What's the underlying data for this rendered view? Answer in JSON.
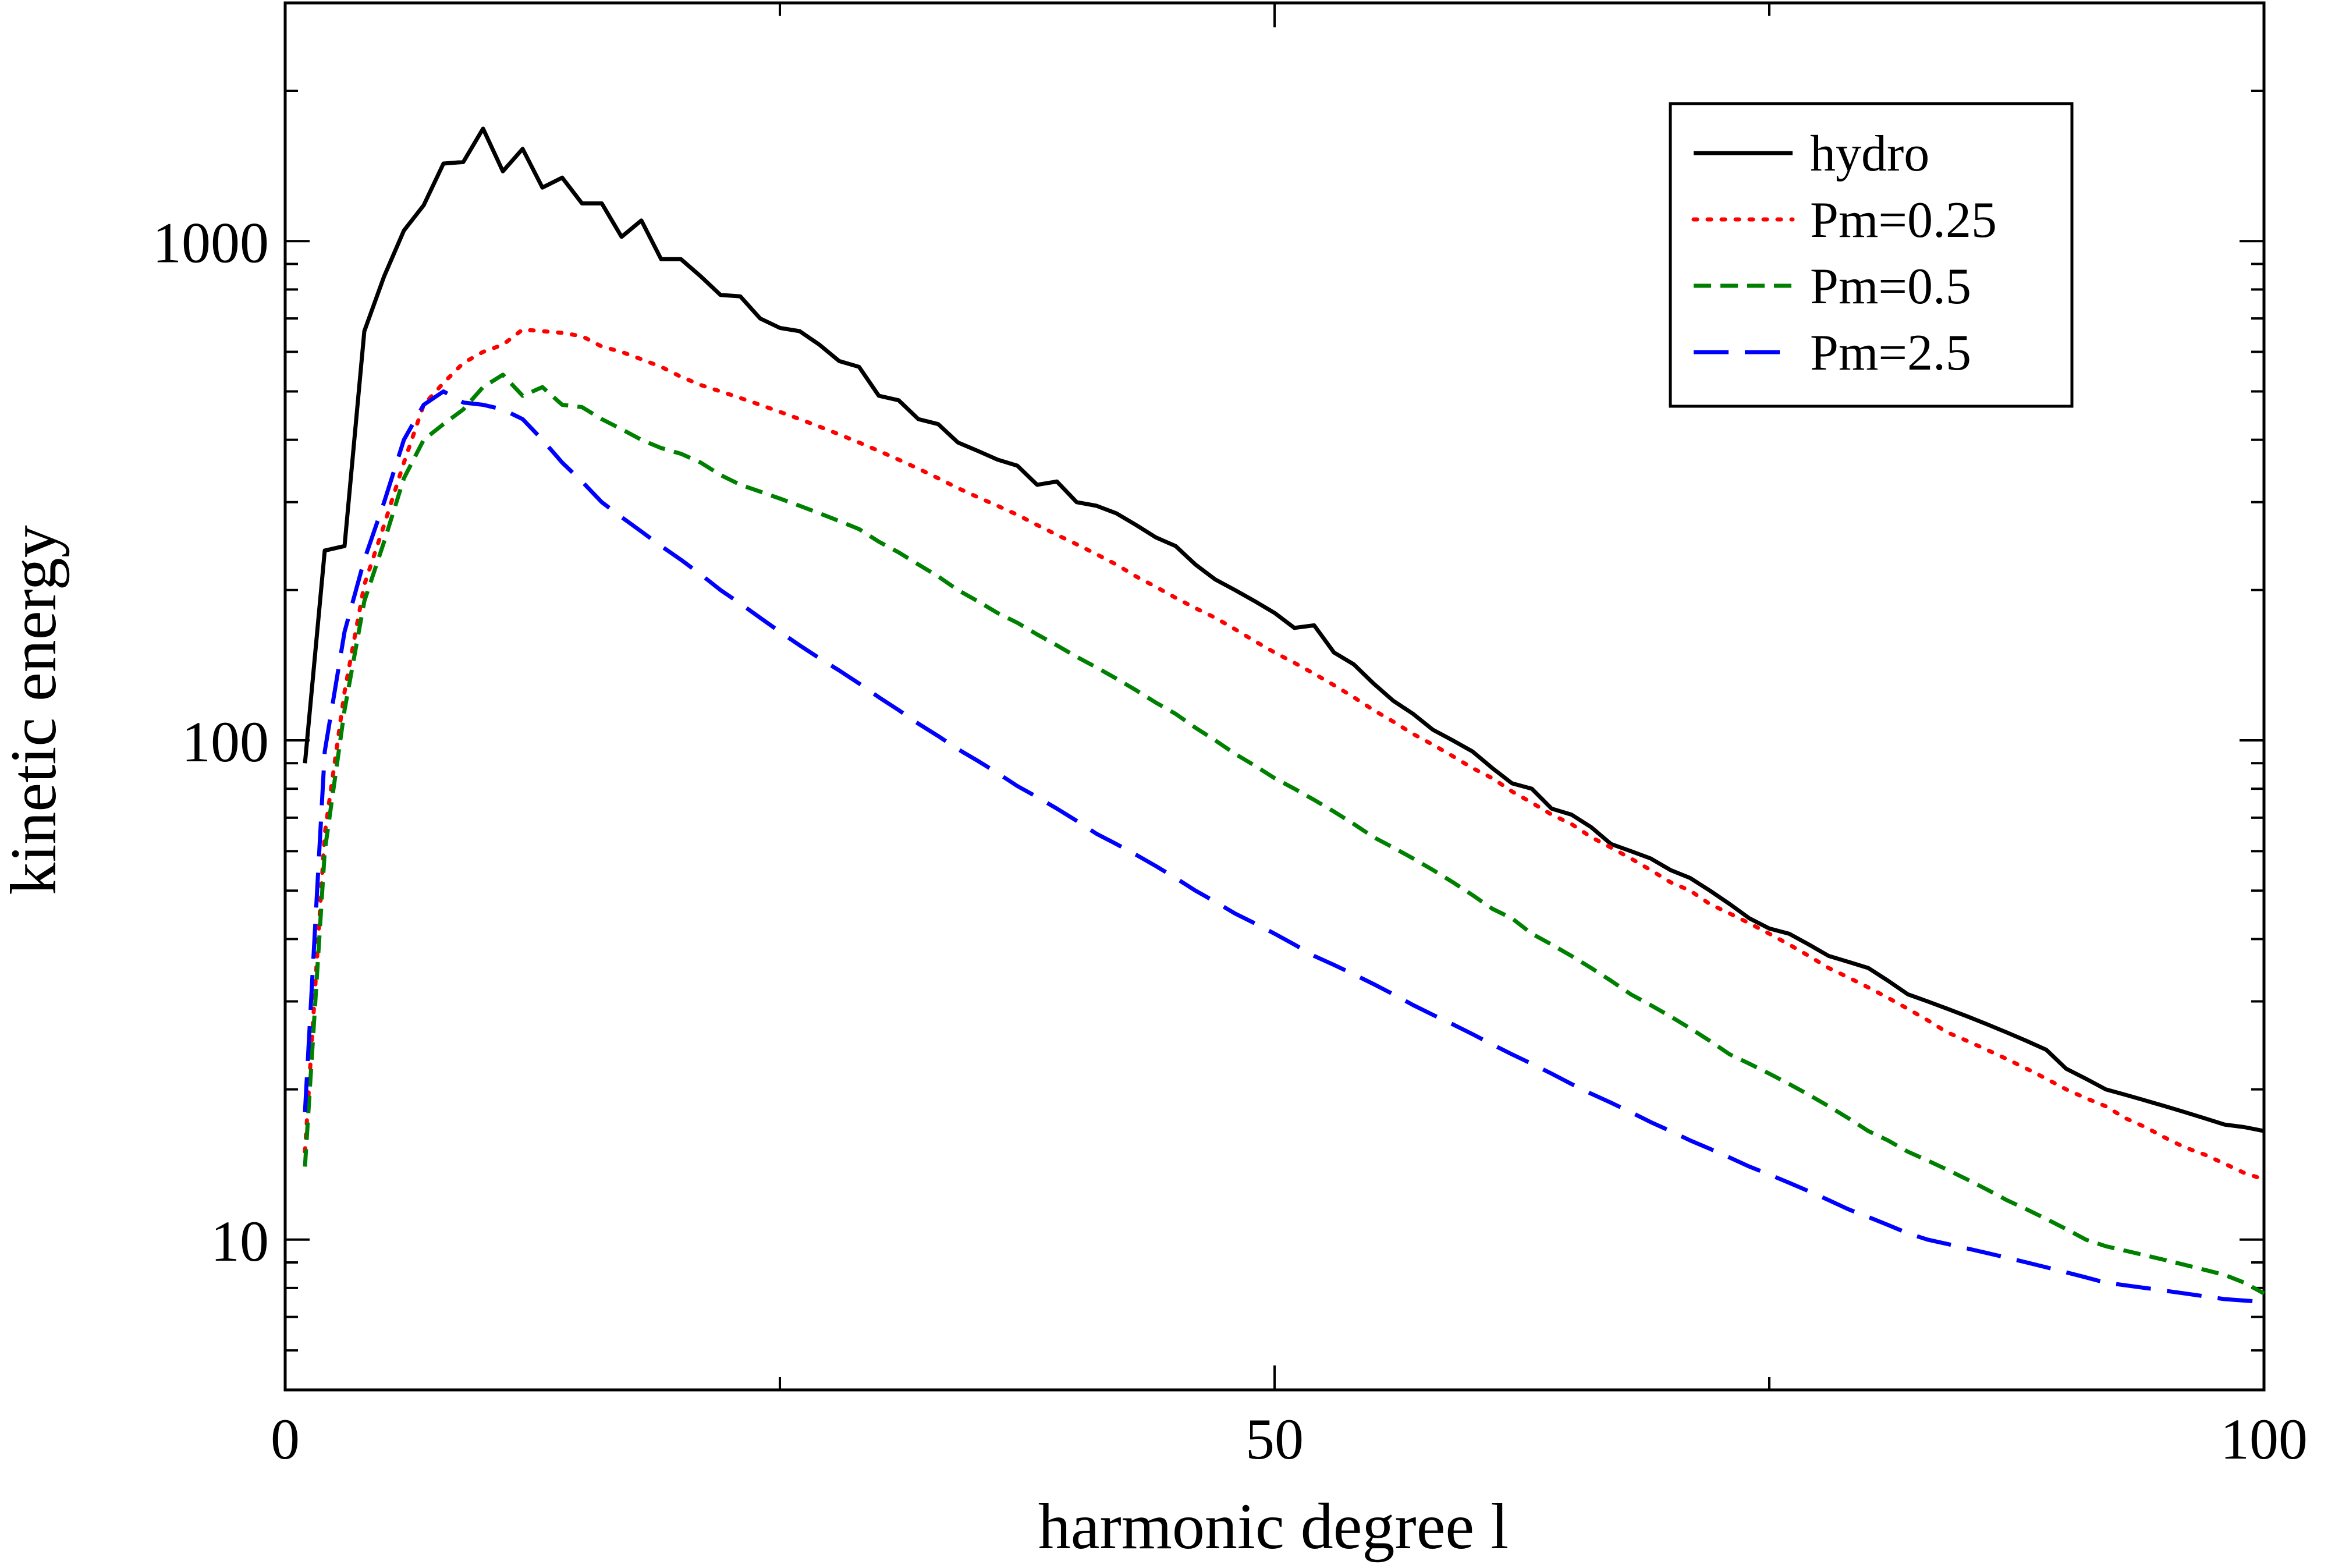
{
  "chart_data": {
    "type": "line",
    "title": "",
    "xlabel": "harmonic degree l",
    "ylabel": "kinetic energy",
    "xlim": [
      0,
      100
    ],
    "ylim": [
      5,
      3000
    ],
    "yscale": "log",
    "grid": false,
    "legend_position": "top-right",
    "x_tick_labels": [
      "0",
      "50",
      "100"
    ],
    "y_tick_labels": [
      "10",
      "100",
      "1000"
    ],
    "x": [
      1,
      2,
      3,
      4,
      5,
      6,
      7,
      8,
      9,
      10,
      11,
      12,
      13,
      14,
      15,
      16,
      17,
      18,
      19,
      20,
      21,
      22,
      23,
      24,
      25,
      26,
      27,
      28,
      29,
      30,
      31,
      32,
      33,
      34,
      35,
      36,
      37,
      38,
      39,
      40,
      41,
      42,
      43,
      44,
      45,
      46,
      47,
      48,
      49,
      50,
      51,
      52,
      53,
      54,
      55,
      56,
      57,
      58,
      59,
      60,
      61,
      62,
      63,
      64,
      65,
      66,
      67,
      68,
      69,
      70,
      71,
      72,
      73,
      74,
      75,
      76,
      77,
      78,
      79,
      80,
      81,
      82,
      83,
      84,
      85,
      86,
      87,
      88,
      89,
      90,
      91,
      92,
      93,
      94,
      95,
      96,
      97,
      98,
      99,
      100
    ],
    "series": [
      {
        "name": "hydro",
        "color": "#000000",
        "dash": "solid",
        "values": [
          90,
          240,
          245,
          660,
          850,
          1050,
          1180,
          1430,
          1440,
          1680,
          1380,
          1530,
          1280,
          1340,
          1190,
          1190,
          1020,
          1100,
          920,
          920,
          850,
          780,
          775,
          700,
          670,
          660,
          620,
          575,
          560,
          490,
          480,
          440,
          430,
          395,
          380,
          365,
          355,
          325,
          330,
          300,
          295,
          285,
          270,
          255,
          245,
          225,
          210,
          200,
          190,
          180,
          168,
          170,
          150,
          142,
          130,
          120,
          113,
          105,
          100,
          95,
          88,
          82,
          80,
          73,
          71,
          67,
          62,
          60,
          58,
          55,
          53,
          50,
          47,
          44,
          42,
          41,
          39,
          37,
          36,
          35,
          33,
          31,
          30,
          29,
          28,
          27,
          26,
          25,
          24,
          22,
          21,
          20,
          19.5,
          19,
          18.5,
          18,
          17.5,
          17,
          16.8,
          16.5
        ]
      },
      {
        "name": "Pm=0.25",
        "color": "#ff0000",
        "dash": "dotted",
        "values": [
          15,
          65,
          125,
          205,
          270,
          360,
          470,
          520,
          570,
          600,
          620,
          665,
          660,
          655,
          645,
          615,
          600,
          580,
          560,
          535,
          515,
          500,
          485,
          470,
          455,
          440,
          425,
          410,
          395,
          380,
          365,
          350,
          335,
          320,
          307,
          295,
          283,
          270,
          258,
          247,
          236,
          225,
          213,
          203,
          193,
          184,
          176,
          167,
          158,
          150,
          143,
          136,
          129,
          122,
          115,
          109,
          103,
          98,
          93,
          88,
          84,
          79,
          75,
          71,
          68,
          64,
          61,
          58,
          55,
          52,
          50,
          47,
          45,
          43,
          41,
          39,
          37,
          35,
          33.5,
          32,
          30.5,
          29,
          27.5,
          26,
          25,
          24,
          23,
          22,
          21,
          20,
          19.2,
          18.5,
          17.5,
          16.8,
          16,
          15.3,
          14.8,
          14.2,
          13.6,
          13.2
        ]
      },
      {
        "name": "Pm=0.5",
        "color": "#008000",
        "dash": "dashed",
        "values": [
          14,
          60,
          115,
          190,
          250,
          335,
          400,
          430,
          460,
          510,
          540,
          490,
          510,
          470,
          465,
          440,
          420,
          400,
          385,
          375,
          360,
          340,
          325,
          315,
          305,
          295,
          285,
          275,
          265,
          250,
          238,
          225,
          213,
          200,
          190,
          180,
          172,
          163,
          155,
          147,
          140,
          133,
          126,
          119,
          113,
          106,
          100,
          94,
          89,
          84,
          80,
          76,
          72,
          68,
          64,
          61,
          58,
          55,
          52,
          49,
          46,
          44,
          41,
          39,
          37,
          35,
          33,
          31,
          29.5,
          28,
          26.5,
          25,
          23.5,
          22.5,
          21.5,
          20.5,
          19.5,
          18.5,
          17.5,
          16.5,
          15.8,
          15,
          14.4,
          13.8,
          13.2,
          12.6,
          12,
          11.5,
          11,
          10.5,
          10,
          9.7,
          9.5,
          9.3,
          9.1,
          8.9,
          8.7,
          8.5,
          8.2,
          7.8
        ]
      },
      {
        "name": "Pm=2.5",
        "color": "#0000ff",
        "dash": "longdash",
        "values": [
          18,
          95,
          165,
          230,
          300,
          400,
          470,
          500,
          475,
          470,
          460,
          440,
          400,
          360,
          330,
          300,
          280,
          262,
          245,
          230,
          215,
          200,
          188,
          176,
          165,
          155,
          146,
          138,
          130,
          122,
          115,
          108,
          102,
          96,
          91,
          86,
          81,
          77,
          73,
          69,
          65,
          62,
          59,
          56,
          53,
          50,
          47.5,
          45,
          43,
          41,
          39,
          37,
          35.5,
          34,
          32.5,
          31,
          29.5,
          28.2,
          27,
          25.8,
          24.6,
          23.5,
          22.5,
          21.5,
          20.5,
          19.6,
          18.8,
          18,
          17.2,
          16.5,
          15.8,
          15.2,
          14.6,
          14,
          13.5,
          13,
          12.5,
          12,
          11.5,
          11.1,
          10.7,
          10.3,
          10,
          9.8,
          9.6,
          9.4,
          9.2,
          9,
          8.8,
          8.6,
          8.4,
          8.2,
          8.1,
          8,
          7.9,
          7.8,
          7.7,
          7.6,
          7.55,
          7.5
        ]
      }
    ]
  }
}
